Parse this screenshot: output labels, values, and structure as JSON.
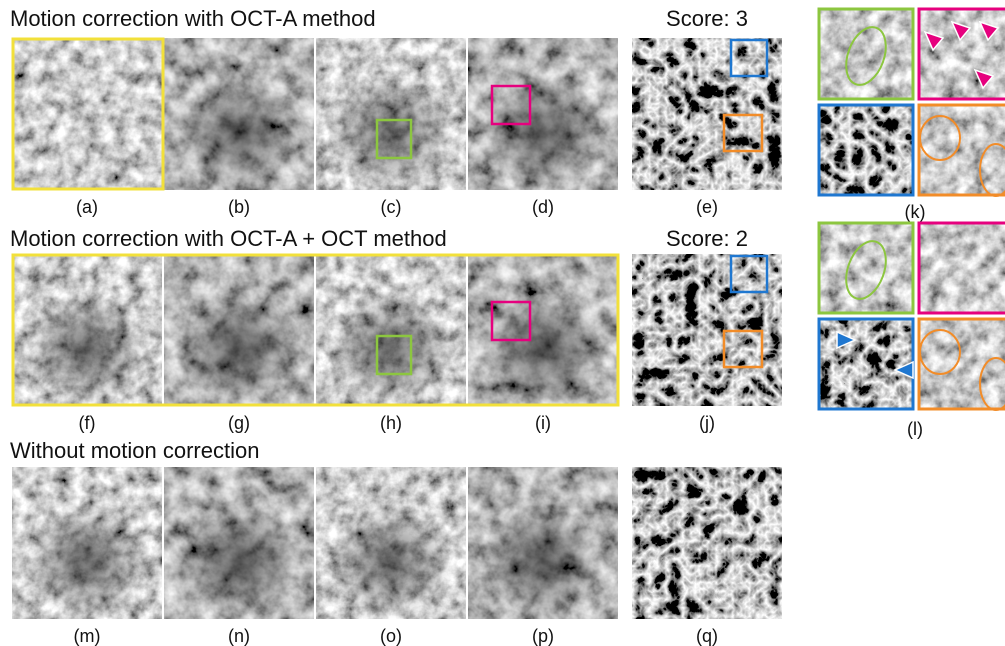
{
  "rows": [
    {
      "title": "Motion correction with OCT-A method",
      "score": "Score: 3",
      "panels": [
        "(a)",
        "(b)",
        "(c)",
        "(d)",
        "(e)"
      ]
    },
    {
      "title": "Motion correction with OCT-A + OCT method",
      "score": "Score: 2",
      "panels": [
        "(f)",
        "(g)",
        "(h)",
        "(i)",
        "(j)"
      ]
    },
    {
      "title": "Without motion correction",
      "panels": [
        "(m)",
        "(n)",
        "(o)",
        "(p)",
        "(q)"
      ]
    }
  ],
  "insets": [
    "(k)",
    "(l)"
  ]
}
